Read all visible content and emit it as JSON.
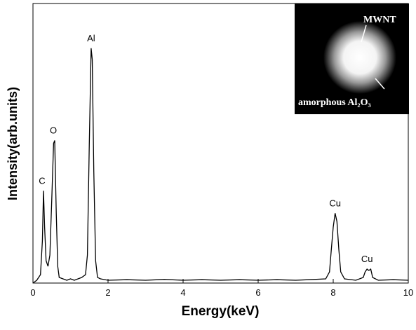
{
  "chart_data": {
    "type": "line",
    "x_label": "Energy(keV)",
    "y_label": "Intensity(arb.units)",
    "xlim": [
      0,
      10
    ],
    "xticks": [
      0,
      2,
      4,
      6,
      8,
      10
    ],
    "ylim": [
      0,
      100
    ],
    "series": [
      {
        "color": "#000000",
        "x": [
          0,
          0.1,
          0.2,
          0.25,
          0.28,
          0.31,
          0.35,
          0.4,
          0.45,
          0.5,
          0.55,
          0.58,
          0.62,
          0.66,
          0.7,
          0.8,
          0.9,
          1.0,
          1.1,
          1.2,
          1.3,
          1.4,
          1.45,
          1.5,
          1.55,
          1.58,
          1.62,
          1.67,
          1.72,
          1.8,
          2.0,
          2.5,
          3.0,
          3.5,
          4.0,
          4.5,
          5.0,
          5.5,
          6.0,
          6.5,
          7.0,
          7.5,
          7.8,
          7.9,
          7.95,
          8.0,
          8.05,
          8.1,
          8.15,
          8.2,
          8.3,
          8.6,
          8.8,
          8.85,
          8.9,
          8.95,
          9.0,
          9.05,
          9.2,
          9.6,
          10
        ],
        "values": [
          0,
          1,
          3,
          15,
          33,
          20,
          8,
          6,
          10,
          30,
          50,
          51,
          25,
          6,
          2,
          1.5,
          1,
          1.5,
          1,
          1.5,
          2,
          3,
          10,
          50,
          84,
          80,
          40,
          8,
          2,
          1.5,
          1,
          1.2,
          1,
          1.3,
          1,
          1.2,
          1,
          1.2,
          1,
          1.2,
          1,
          1.3,
          1.5,
          4,
          12,
          20,
          25,
          22,
          12,
          4,
          1.5,
          1,
          2,
          4,
          5,
          4.5,
          5,
          2,
          1,
          1.2,
          1
        ]
      }
    ],
    "annotations": [
      {
        "text": "C",
        "x": 0.28
      },
      {
        "text": "O",
        "x": 0.58
      },
      {
        "text": "Al",
        "x": 1.55
      },
      {
        "text": "Cu",
        "x": 8.05
      },
      {
        "text": "Cu",
        "x": 8.9
      }
    ],
    "inset": {
      "labels": [
        "MWNT",
        "amorphous Al₂O₃"
      ]
    }
  }
}
